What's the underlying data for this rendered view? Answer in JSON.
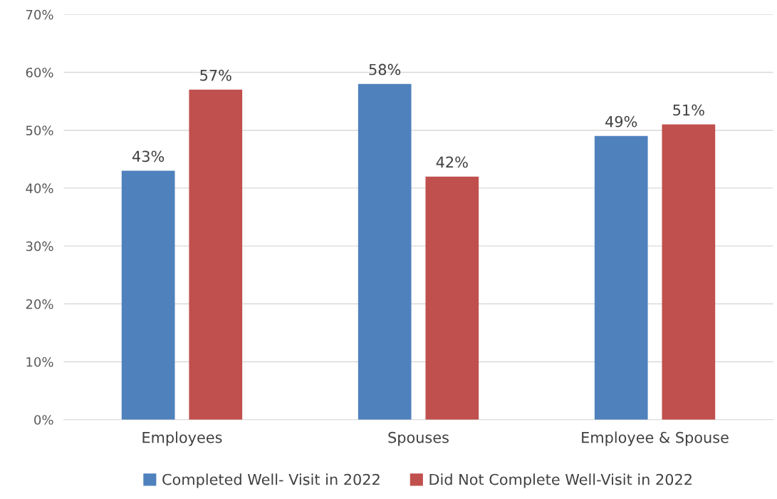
{
  "chart_data": {
    "type": "bar",
    "categories": [
      "Employees",
      "Spouses",
      "Employee & Spouse"
    ],
    "series": [
      {
        "name": "Completed Well- Visit in 2022",
        "color": "#4f81bd",
        "values": [
          43,
          58,
          49
        ],
        "value_labels": [
          "43%",
          "58%",
          "49%"
        ]
      },
      {
        "name": "Did Not Complete Well-Visit in 2022",
        "color": "#c0504d",
        "values": [
          57,
          42,
          51
        ],
        "value_labels": [
          "57%",
          "42%",
          "51%"
        ]
      }
    ],
    "ylim": [
      0,
      70
    ],
    "yticks": [
      {
        "value": 0,
        "label": "0%"
      },
      {
        "value": 10,
        "label": "10%"
      },
      {
        "value": 20,
        "label": "20%"
      },
      {
        "value": 30,
        "label": "30%"
      },
      {
        "value": 40,
        "label": "40%"
      },
      {
        "value": 50,
        "label": "50%"
      },
      {
        "value": 60,
        "label": "60%"
      },
      {
        "value": 70,
        "label": "70%"
      }
    ],
    "grid": "y",
    "legend": "bottom"
  }
}
